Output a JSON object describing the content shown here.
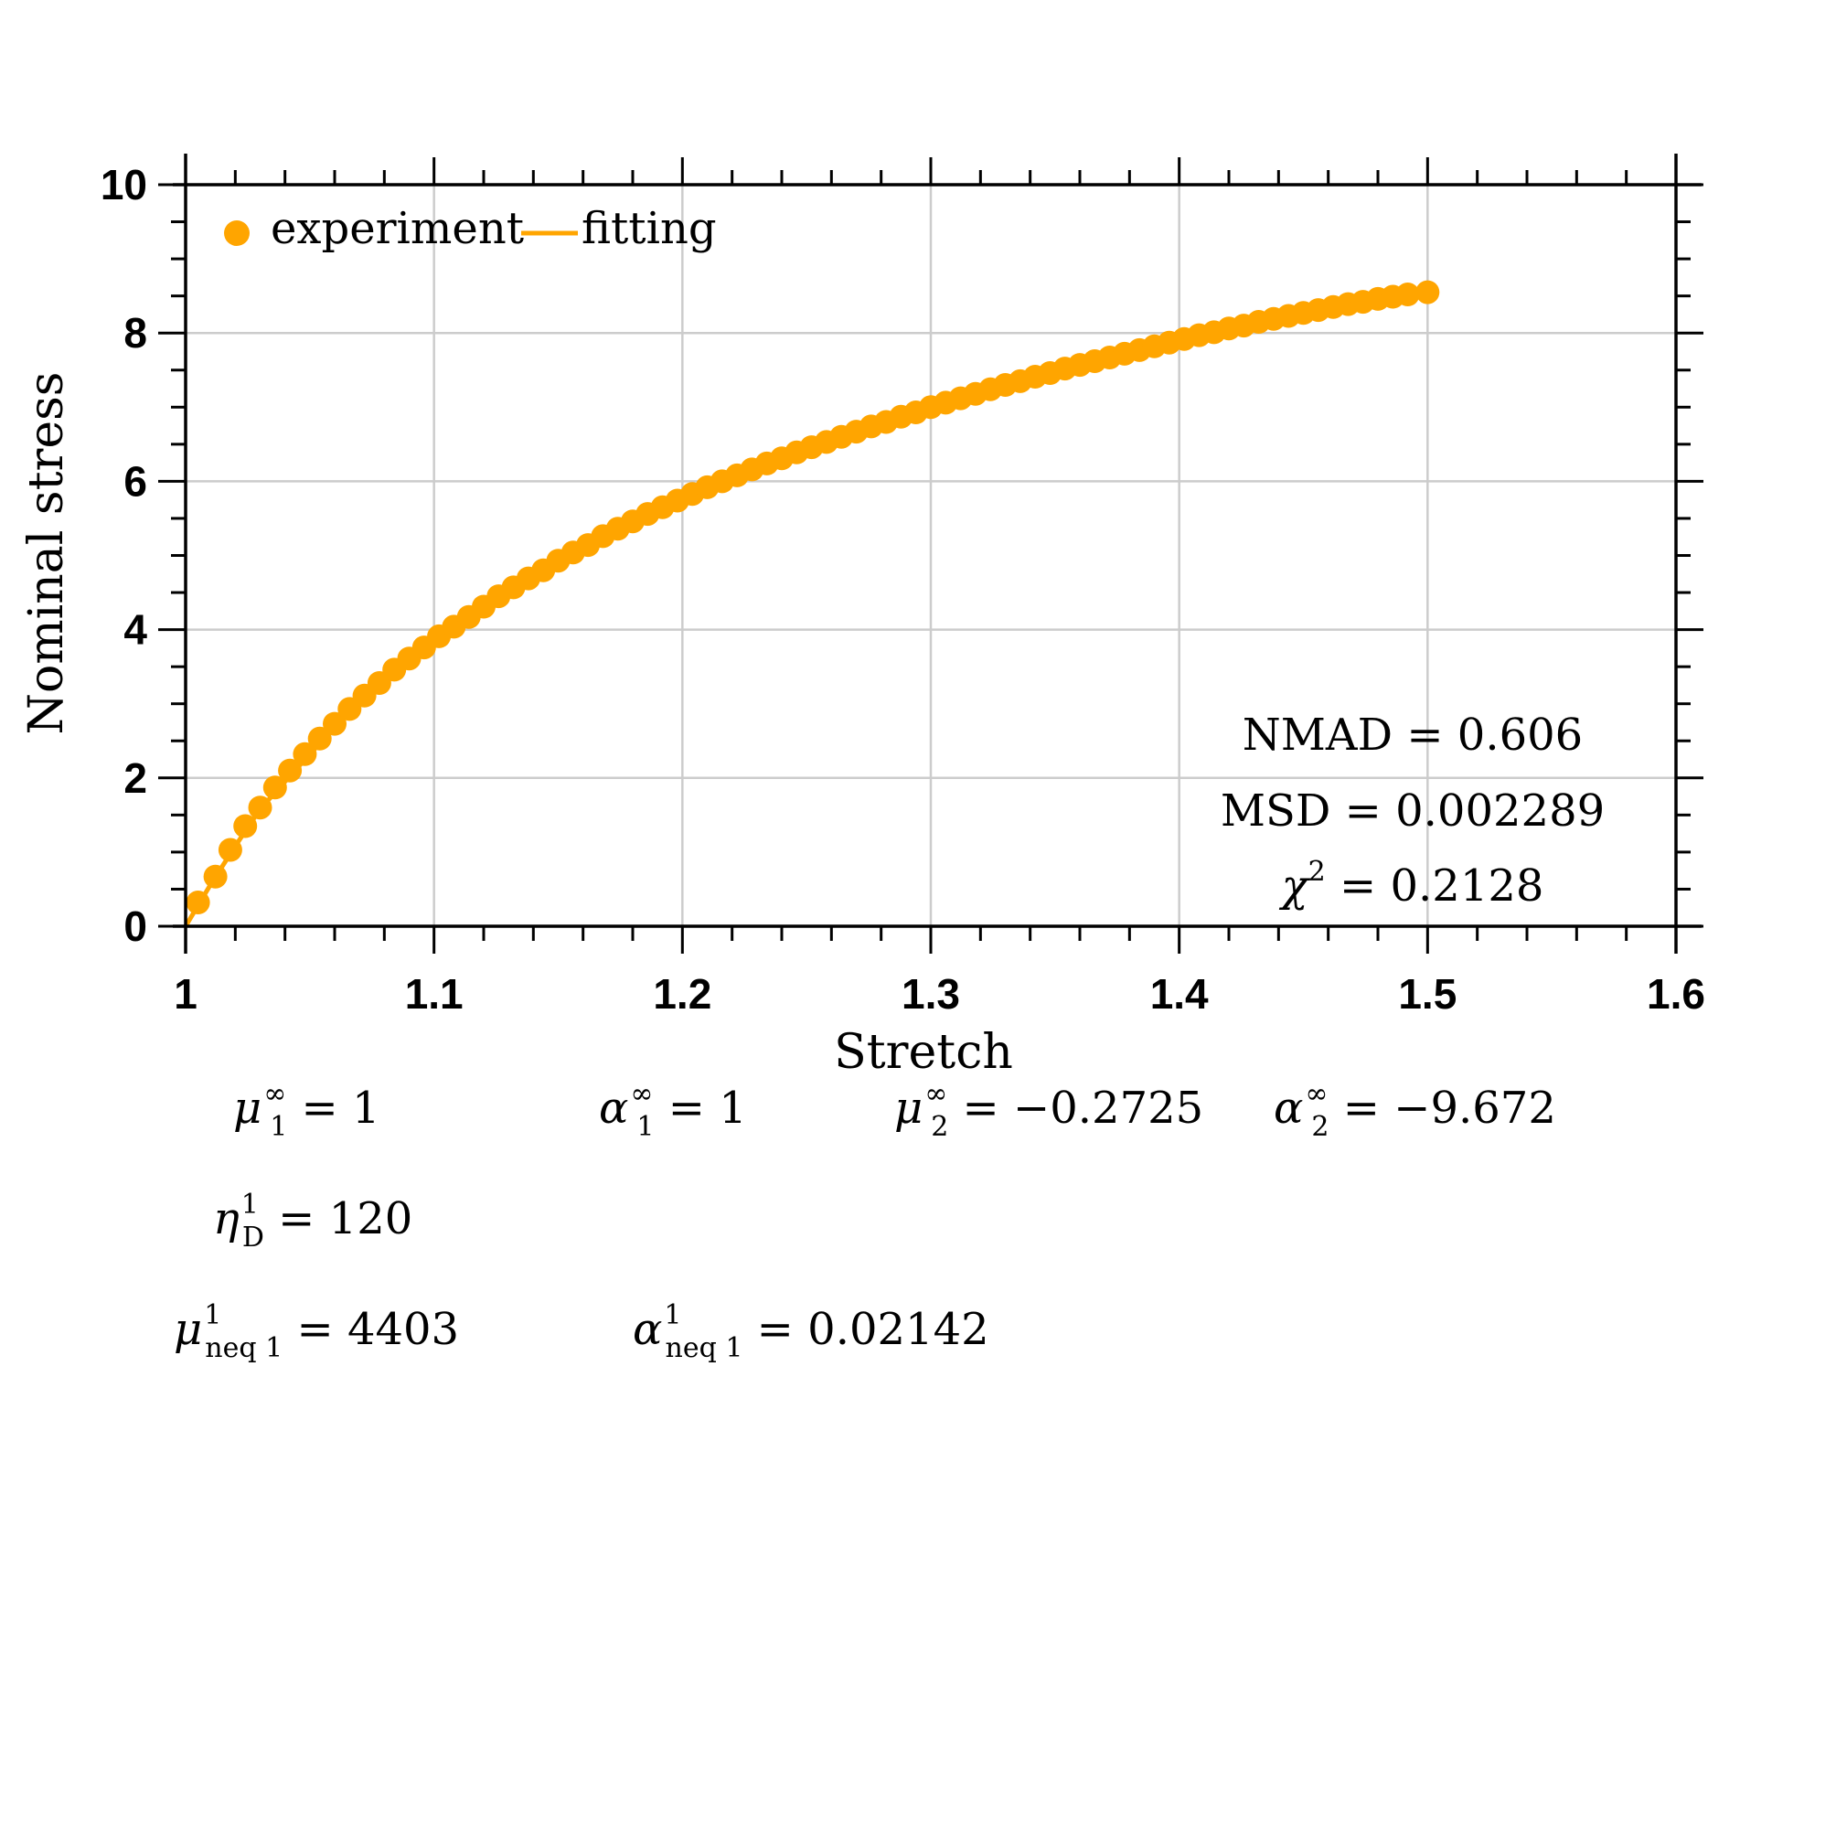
{
  "chart_data": {
    "type": "scatter",
    "title": "",
    "xlabel": "Stretch",
    "ylabel": "Nominal stress",
    "xlim": [
      1,
      1.6
    ],
    "ylim": [
      0,
      10
    ],
    "xticks": [
      1,
      1.1,
      1.2,
      1.3,
      1.4,
      1.5,
      1.6
    ],
    "xtick_labels": [
      "1",
      "1.1",
      "1.2",
      "1.3",
      "1.4",
      "1.5",
      "1.6"
    ],
    "yticks": [
      0,
      2,
      4,
      6,
      8,
      10
    ],
    "ytick_labels": [
      "0",
      "2",
      "4",
      "6",
      "8",
      "10"
    ],
    "grid": true,
    "legend_position": "top-left",
    "color": "#FFA500",
    "series": [
      {
        "name": "experiment",
        "style": "markers",
        "x": [
          1.005,
          1.012,
          1.018,
          1.024,
          1.03,
          1.036,
          1.042,
          1.048,
          1.054,
          1.06,
          1.066,
          1.072,
          1.078,
          1.084,
          1.09,
          1.096,
          1.102,
          1.108,
          1.114,
          1.12,
          1.126,
          1.132,
          1.138,
          1.144,
          1.15,
          1.156,
          1.162,
          1.168,
          1.174,
          1.18,
          1.186,
          1.192,
          1.198,
          1.204,
          1.21,
          1.216,
          1.222,
          1.228,
          1.234,
          1.24,
          1.246,
          1.252,
          1.258,
          1.264,
          1.27,
          1.276,
          1.282,
          1.288,
          1.294,
          1.3,
          1.306,
          1.312,
          1.318,
          1.324,
          1.33,
          1.336,
          1.342,
          1.348,
          1.354,
          1.36,
          1.366,
          1.372,
          1.378,
          1.384,
          1.39,
          1.396,
          1.402,
          1.408,
          1.414,
          1.42,
          1.426,
          1.432,
          1.438,
          1.444,
          1.45,
          1.456,
          1.462,
          1.468,
          1.474,
          1.48,
          1.486,
          1.492,
          1.5
        ],
        "y": [
          0.32,
          0.67,
          1.03,
          1.35,
          1.6,
          1.87,
          2.1,
          2.32,
          2.53,
          2.73,
          2.93,
          3.11,
          3.28,
          3.46,
          3.61,
          3.76,
          3.91,
          4.04,
          4.17,
          4.31,
          4.45,
          4.57,
          4.69,
          4.8,
          4.93,
          5.04,
          5.14,
          5.26,
          5.36,
          5.46,
          5.56,
          5.65,
          5.74,
          5.83,
          5.92,
          6.0,
          6.08,
          6.16,
          6.24,
          6.31,
          6.39,
          6.46,
          6.53,
          6.6,
          6.67,
          6.74,
          6.8,
          6.87,
          6.93,
          7.0,
          7.06,
          7.12,
          7.18,
          7.24,
          7.3,
          7.35,
          7.41,
          7.46,
          7.52,
          7.57,
          7.62,
          7.67,
          7.72,
          7.77,
          7.82,
          7.87,
          7.92,
          7.97,
          8.01,
          8.06,
          8.1,
          8.15,
          8.19,
          8.23,
          8.27,
          8.31,
          8.35,
          8.39,
          8.42,
          8.46,
          8.49,
          8.52,
          8.55
        ]
      },
      {
        "name": "fitting",
        "style": "line",
        "x": [
          1.0,
          1.01,
          1.02,
          1.03,
          1.05,
          1.075,
          1.1,
          1.15,
          1.2,
          1.25,
          1.3,
          1.35,
          1.4,
          1.45,
          1.5
        ],
        "y": [
          0.0,
          0.56,
          1.08,
          1.58,
          2.32,
          3.2,
          3.85,
          4.93,
          5.75,
          6.43,
          7.0,
          7.48,
          7.9,
          8.26,
          8.56
        ]
      }
    ]
  },
  "stats": {
    "nmad": "NMAD = 0.606",
    "msd": "MSD = 0.002289",
    "chi2_base": "χ",
    "chi2_sup": "2",
    "chi2_rest": " = 0.2128"
  },
  "params": [
    {
      "sym": "μ",
      "sub": "1",
      "sup": "∞",
      "rest": " = 1"
    },
    {
      "sym": "α",
      "sub": "1",
      "sup": "∞",
      "rest": " = 1"
    },
    {
      "sym": "μ",
      "sub": "2",
      "sup": "∞",
      "rest": " = −0.2725"
    },
    {
      "sym": "α",
      "sub": "2",
      "sup": "∞",
      "rest": " = −9.672"
    },
    {
      "sym": "η",
      "sub": "D",
      "sup": "1",
      "rest": " = 120"
    },
    {
      "sym": "μ",
      "sub": "neq 1",
      "sup": "1",
      "rest": " = 4403"
    },
    {
      "sym": "α",
      "sub": "neq 1",
      "sup": "1",
      "rest": " = 0.02142"
    }
  ]
}
